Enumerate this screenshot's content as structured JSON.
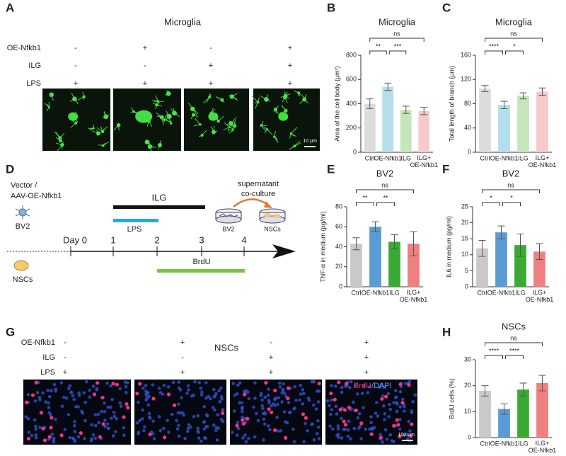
{
  "panel_labels": [
    "A",
    "B",
    "C",
    "D",
    "E",
    "F",
    "G",
    "H"
  ],
  "panel_a": {
    "title": "Microglia",
    "conditions": [
      {
        "name": "OE-Nfkb1",
        "signs": [
          "-",
          "+",
          "-",
          "+"
        ]
      },
      {
        "name": "ILG",
        "signs": [
          "-",
          "-",
          "+",
          "+"
        ]
      },
      {
        "name": "LPS",
        "signs": [
          "+",
          "+",
          "+",
          "+"
        ]
      }
    ],
    "scale_bar": "10 µm"
  },
  "panel_d": {
    "vector_label": [
      "Vector /",
      "AAV-OE-Nfkb1"
    ],
    "cells": [
      "BV2",
      "NSCs"
    ],
    "days": [
      "Day 0",
      "1",
      "2",
      "3",
      "4"
    ],
    "treatments": [
      "ILG",
      "LPS",
      "BrdU"
    ],
    "coculture": [
      "supernatant",
      "co-culture"
    ],
    "dishes": [
      "BV2",
      "NSCs"
    ]
  },
  "panel_g": {
    "title": "NSCs",
    "conditions": [
      {
        "name": "OE-Nfkb1",
        "signs": [
          "-",
          "+",
          "-",
          "+"
        ]
      },
      {
        "name": "ILG",
        "signs": [
          "-",
          "-",
          "+",
          "+"
        ]
      },
      {
        "name": "LPS",
        "signs": [
          "+",
          "+",
          "+",
          "+"
        ]
      }
    ],
    "stain": [
      "BrdU",
      "/DAPI"
    ],
    "scale_bar": "100 µm"
  },
  "chart_data": [
    {
      "type": "bar",
      "title": "Microglia",
      "y_label": "Area of the cell body (µm²)",
      "categories": [
        "Ctrl",
        "OE-Nfkb1",
        "ILG",
        "ILG+OE-Nfkb1"
      ],
      "values": [
        400,
        540,
        350,
        340
      ],
      "errors": [
        40,
        30,
        30,
        30
      ],
      "colors": [
        "#dcdcdc",
        "#b3dfeb",
        "#c5e6bb",
        "#f7caca"
      ],
      "ylim": [
        0,
        800
      ],
      "yticks": [
        0,
        200,
        400,
        600,
        800
      ],
      "annotations": [
        "**",
        "***",
        "ns"
      ]
    },
    {
      "type": "bar",
      "title": "Microglia",
      "y_label": "Total length of branch  (µm)",
      "categories": [
        "Ctrl",
        "OE-Nfkb1",
        "ILG",
        "ILG+OE-Nfkb1"
      ],
      "values": [
        105,
        78,
        93,
        100
      ],
      "errors": [
        5,
        6,
        5,
        6
      ],
      "colors": [
        "#dcdcdc",
        "#b3dfeb",
        "#c5e6bb",
        "#f7caca"
      ],
      "ylim": [
        0,
        160
      ],
      "yticks": [
        0,
        40,
        80,
        120,
        160
      ],
      "annotations": [
        "****",
        "*",
        "ns"
      ]
    },
    {
      "type": "bar",
      "title": "BV2",
      "y_label": "TNF-α in medium (pg/ml)",
      "categories": [
        "Ctrl",
        "OE-Nfkb1",
        "ILG",
        "ILG+OE-Nfkb1"
      ],
      "values": [
        43,
        60,
        45,
        43
      ],
      "errors": [
        6,
        5,
        7,
        12
      ],
      "colors": [
        "#c9c9c9",
        "#5b9bd5",
        "#3aaa35",
        "#f08080"
      ],
      "ylim": [
        0,
        80
      ],
      "yticks": [
        0,
        20,
        40,
        60,
        80
      ],
      "annotations": [
        "**",
        "**",
        "ns"
      ]
    },
    {
      "type": "bar",
      "title": "BV2",
      "y_label": "IL6 in medium (pg/ml)",
      "categories": [
        "Ctrl",
        "OE-Nfkb1",
        "ILG",
        "ILG+OE-Nfkb1"
      ],
      "values": [
        12,
        17,
        13,
        11
      ],
      "errors": [
        2.5,
        2,
        3.5,
        2.5
      ],
      "colors": [
        "#c9c9c9",
        "#5b9bd5",
        "#3aaa35",
        "#f08080"
      ],
      "ylim": [
        0,
        25
      ],
      "yticks": [
        0,
        5,
        10,
        15,
        20,
        25
      ],
      "annotations": [
        "*",
        "*",
        "ns"
      ]
    },
    {
      "type": "bar",
      "title": "NSCs",
      "y_label": "BrdU cells  (%)",
      "categories": [
        "Ctrl",
        "OE-Nfkb1",
        "ILG",
        "ILG+OE-Nfkb1"
      ],
      "values": [
        18,
        11,
        18.5,
        21
      ],
      "errors": [
        2,
        2,
        2.5,
        3
      ],
      "colors": [
        "#c9c9c9",
        "#5b9bd5",
        "#3aaa35",
        "#f08080"
      ],
      "ylim": [
        0,
        30
      ],
      "yticks": [
        0,
        10,
        20,
        30
      ],
      "annotations": [
        "****",
        "****",
        "ns"
      ]
    }
  ]
}
